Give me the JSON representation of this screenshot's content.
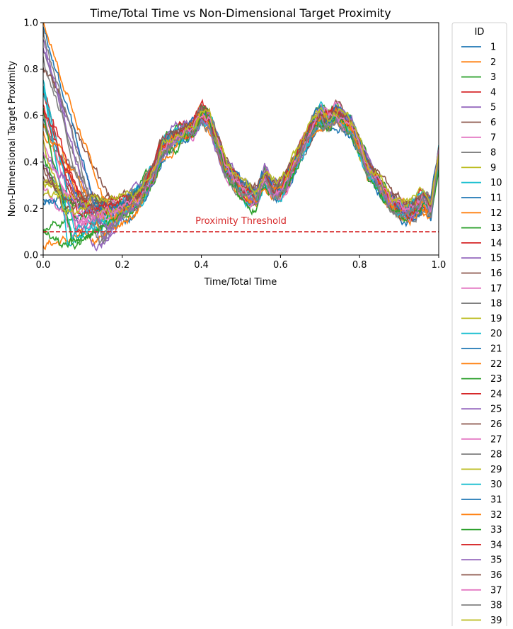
{
  "chart_data": {
    "type": "line",
    "title": "Time/Total Time vs Non-Dimensional Target Proximity",
    "xlabel": "Time/Total Time",
    "ylabel": "Non-Dimensional Target Proximity",
    "xlim": [
      0.0,
      1.0
    ],
    "ylim": [
      0.0,
      1.0
    ],
    "xticks": [
      0.0,
      0.2,
      0.4,
      0.6,
      0.8,
      1.0
    ],
    "xtick_labels": [
      "0.0",
      "0.2",
      "0.4",
      "0.6",
      "0.8",
      "1.0"
    ],
    "yticks": [
      0.0,
      0.2,
      0.4,
      0.6,
      0.8,
      1.0
    ],
    "ytick_labels": [
      "0.0",
      "0.2",
      "0.4",
      "0.6",
      "0.8",
      "1.0"
    ],
    "grid": false,
    "legend": {
      "title": "ID",
      "placement": "outside-right"
    },
    "threshold": {
      "y": 0.1,
      "label": "Proximity Threshold",
      "color": "#d62728",
      "style": "dashed"
    },
    "palette": [
      "#1f77b4",
      "#ff7f0e",
      "#2ca02c",
      "#d62728",
      "#9467bd",
      "#8c564b",
      "#e377c2",
      "#7f7f7f",
      "#bcbd22",
      "#17becf"
    ],
    "common_trajectory": {
      "x": [
        0.22,
        0.25,
        0.28,
        0.3,
        0.33,
        0.35,
        0.38,
        0.4,
        0.42,
        0.44,
        0.46,
        0.48,
        0.5,
        0.52,
        0.54,
        0.56,
        0.58,
        0.6,
        0.62,
        0.65,
        0.68,
        0.7,
        0.72,
        0.74,
        0.76,
        0.78,
        0.8,
        0.82,
        0.84,
        0.86,
        0.88,
        0.9,
        0.92,
        0.94,
        0.96,
        0.98,
        1.0
      ],
      "y": [
        0.22,
        0.26,
        0.36,
        0.45,
        0.5,
        0.52,
        0.55,
        0.61,
        0.58,
        0.48,
        0.38,
        0.33,
        0.28,
        0.26,
        0.25,
        0.34,
        0.28,
        0.28,
        0.33,
        0.45,
        0.55,
        0.6,
        0.58,
        0.61,
        0.58,
        0.55,
        0.46,
        0.38,
        0.33,
        0.27,
        0.22,
        0.2,
        0.18,
        0.2,
        0.24,
        0.2,
        0.42
      ]
    },
    "series": [
      {
        "name": "1",
        "start": 0.22
      },
      {
        "name": "2",
        "start": 0.05
      },
      {
        "name": "3",
        "start": 0.12
      },
      {
        "name": "4",
        "start": 0.72
      },
      {
        "name": "5",
        "start": 0.38
      },
      {
        "name": "6",
        "start": 0.35
      },
      {
        "name": "7",
        "start": 0.3
      },
      {
        "name": "8",
        "start": 0.88
      },
      {
        "name": "9",
        "start": 0.3
      },
      {
        "name": "10",
        "start": 0.76
      },
      {
        "name": "11",
        "start": 0.6
      },
      {
        "name": "12",
        "start": 0.52
      },
      {
        "name": "13",
        "start": 0.42
      },
      {
        "name": "14",
        "start": 0.65
      },
      {
        "name": "15",
        "start": 0.9
      },
      {
        "name": "16",
        "start": 0.8
      },
      {
        "name": "17",
        "start": 0.62
      },
      {
        "name": "18",
        "start": 0.55
      },
      {
        "name": "19",
        "start": 0.32
      },
      {
        "name": "20",
        "start": 0.7
      },
      {
        "name": "21",
        "start": 0.25
      },
      {
        "name": "22",
        "start": 0.58
      },
      {
        "name": "23",
        "start": 0.1
      },
      {
        "name": "24",
        "start": 0.68
      },
      {
        "name": "25",
        "start": 0.92
      },
      {
        "name": "26",
        "start": 0.4
      },
      {
        "name": "27",
        "start": 0.48
      },
      {
        "name": "28",
        "start": 0.84
      },
      {
        "name": "29",
        "start": 0.27
      },
      {
        "name": "30",
        "start": 0.74
      },
      {
        "name": "31",
        "start": 0.98
      },
      {
        "name": "32",
        "start": 1.0
      },
      {
        "name": "33",
        "start": 0.64
      },
      {
        "name": "34",
        "start": 0.62
      },
      {
        "name": "35",
        "start": 0.45
      },
      {
        "name": "36",
        "start": 0.36
      },
      {
        "name": "37",
        "start": 0.44
      },
      {
        "name": "38",
        "start": 0.96
      },
      {
        "name": "39",
        "start": 0.5
      }
    ]
  }
}
